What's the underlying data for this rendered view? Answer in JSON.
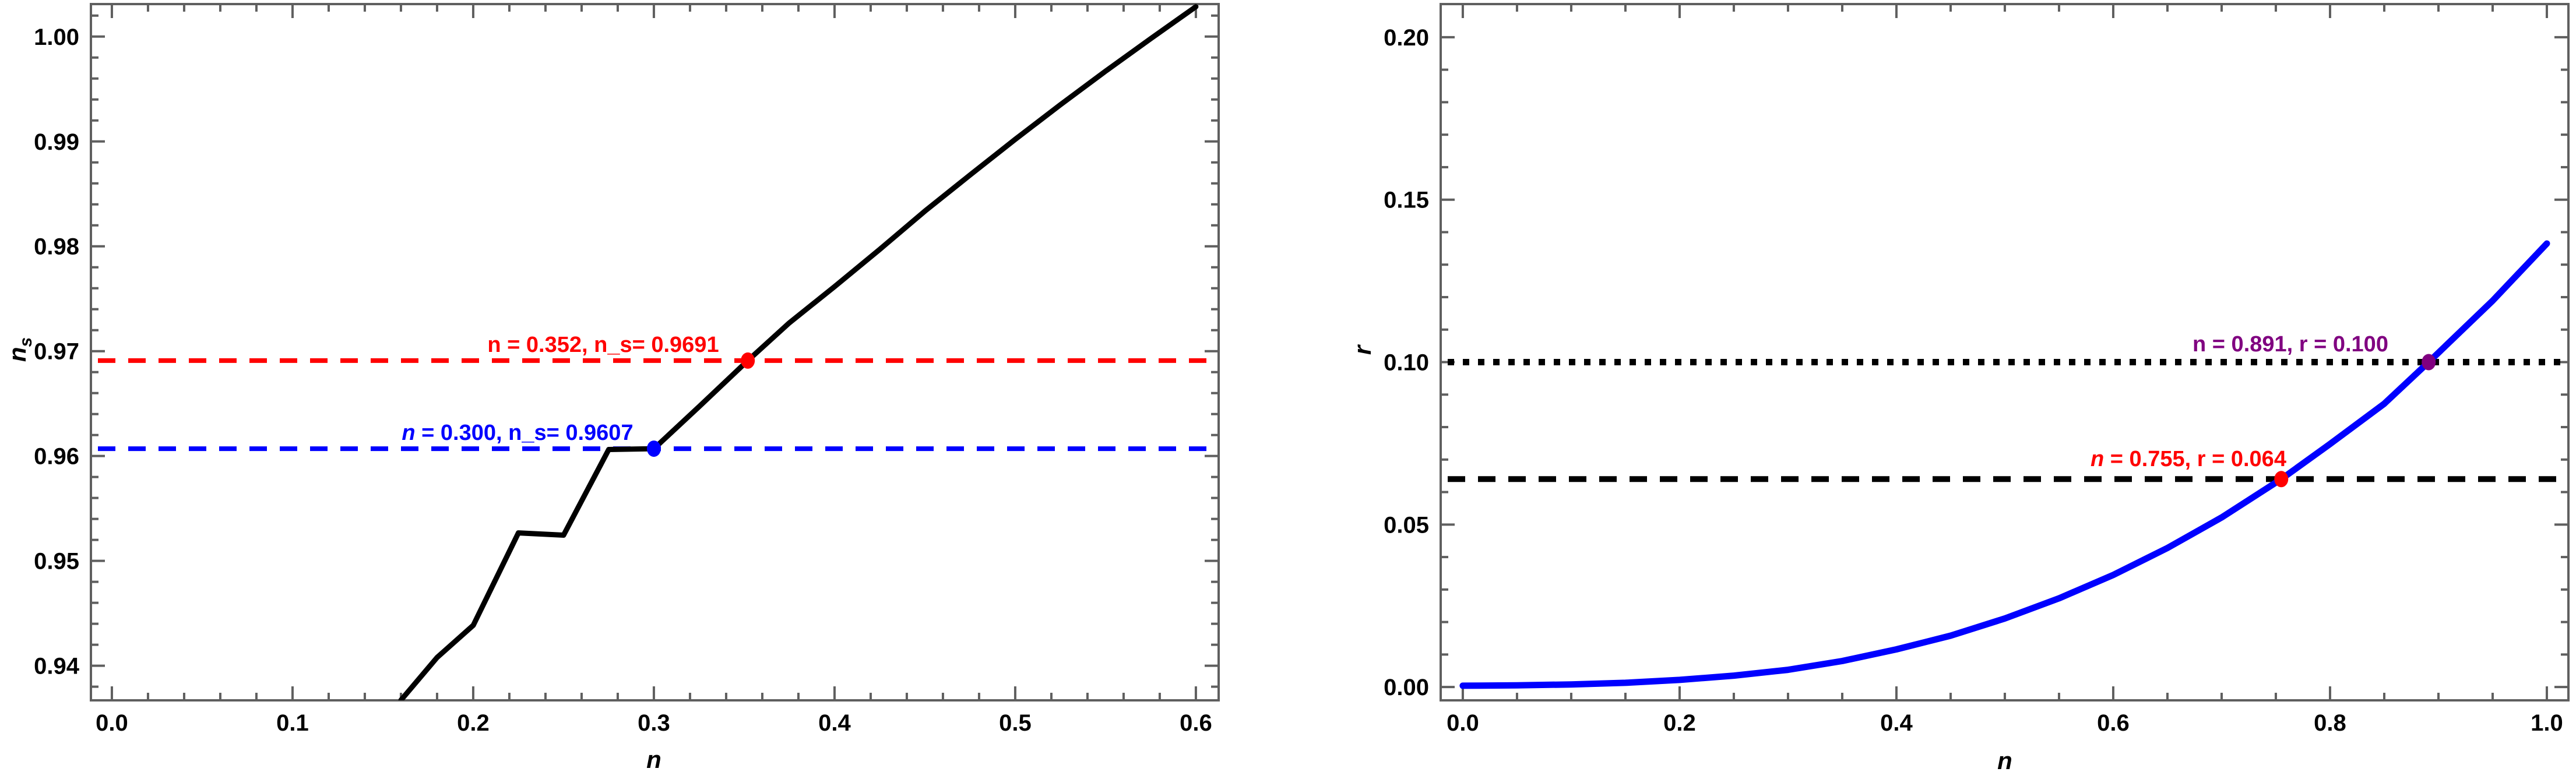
{
  "figure": {
    "background": "#ffffff",
    "frame_color": "#5f5f5f",
    "description": "Two framed line plots: spectral index n_s vs n, and tensor-to-scalar ratio r vs n"
  },
  "chart_data": [
    {
      "type": "line",
      "panel": "left",
      "xlabel": "n",
      "ylabel": "n_s",
      "ylabel_base": "n",
      "ylabel_sub": "s",
      "xlim": [
        -0.0116,
        0.6126
      ],
      "ylim": [
        0.9367,
        1.0031
      ],
      "xticks": {
        "values": [
          0.0,
          0.1,
          0.2,
          0.3,
          0.4,
          0.5,
          0.6
        ],
        "labels": [
          "0.0",
          "0.1",
          "0.2",
          "0.3",
          "0.4",
          "0.5",
          "0.6"
        ],
        "minor_step": 0.02
      },
      "yticks": {
        "values": [
          0.94,
          0.95,
          0.96,
          0.97,
          0.98,
          0.99,
          1.0
        ],
        "labels": [
          "0.94",
          "0.95",
          "0.96",
          "0.97",
          "0.98",
          "0.99",
          "1.00"
        ],
        "minor_step": 0.002
      },
      "series": [
        {
          "name": "ns-curve",
          "color": "#000000",
          "width": 9,
          "style": "solid",
          "points": [
            [
              0.16,
              0.93672
            ],
            [
              0.18,
              0.94079
            ],
            [
              0.2,
              0.94385
            ],
            [
              0.225,
              0.95267
            ],
            [
              0.25,
              0.95245
            ],
            [
              0.275,
              0.96062
            ],
            [
              0.3,
              0.9607
            ],
            [
              0.325,
              0.9647
            ],
            [
              0.352,
              0.9691
            ],
            [
              0.375,
              0.9727
            ],
            [
              0.4,
              0.97615
            ],
            [
              0.425,
              0.9797
            ],
            [
              0.45,
              0.98335
            ],
            [
              0.475,
              0.9868
            ],
            [
              0.5,
              0.9902
            ],
            [
              0.525,
              0.9935
            ],
            [
              0.55,
              0.9967
            ],
            [
              0.575,
              0.9998
            ],
            [
              0.6,
              1.00285
            ]
          ]
        }
      ],
      "hlines": [
        {
          "y": 0.9691,
          "color": "#ff0000",
          "style": "dashed",
          "width": 8
        },
        {
          "y": 0.9607,
          "color": "#0000ff",
          "style": "dashed",
          "width": 8
        }
      ],
      "points": [
        {
          "x": 0.352,
          "y": 0.9691,
          "color": "#ff0000"
        },
        {
          "x": 0.3,
          "y": 0.9607,
          "color": "#0000ff"
        }
      ],
      "annotations": [
        {
          "text_head": "n",
          "text_rest": " = 0.352, n_s= 0.9691",
          "italic_head": false,
          "color": "#ff0000"
        },
        {
          "text_head": "n",
          "text_rest": " = 0.300, n_s= 0.9607",
          "italic_head": true,
          "color": "#0000ff"
        }
      ]
    },
    {
      "type": "line",
      "panel": "right",
      "xlabel": "n",
      "ylabel": "r",
      "ylabel_base": "r",
      "ylabel_sub": "",
      "xlim": [
        -0.0204,
        1.0199
      ],
      "ylim": [
        -0.0041,
        0.2102
      ],
      "xticks": {
        "values": [
          0.0,
          0.2,
          0.4,
          0.6,
          0.8,
          1.0
        ],
        "labels": [
          "0.0",
          "0.2",
          "0.4",
          "0.6",
          "0.8",
          "1.0"
        ],
        "minor_step": 0.05
      },
      "yticks": {
        "values": [
          0.0,
          0.05,
          0.1,
          0.15,
          0.2
        ],
        "labels": [
          "0.00",
          "0.05",
          "0.10",
          "0.15",
          "0.20"
        ],
        "minor_step": 0.01
      },
      "series": [
        {
          "name": "r-curve",
          "color": "#0000ff",
          "width": 11,
          "style": "solid",
          "points": [
            [
              0.0,
              0.0004
            ],
            [
              0.05,
              0.0005
            ],
            [
              0.1,
              0.0008
            ],
            [
              0.15,
              0.0013
            ],
            [
              0.2,
              0.0022
            ],
            [
              0.25,
              0.0035
            ],
            [
              0.3,
              0.0053
            ],
            [
              0.35,
              0.008
            ],
            [
              0.4,
              0.0116
            ],
            [
              0.45,
              0.0158
            ],
            [
              0.5,
              0.0211
            ],
            [
              0.55,
              0.0273
            ],
            [
              0.6,
              0.0345
            ],
            [
              0.65,
              0.0428
            ],
            [
              0.7,
              0.0522
            ],
            [
              0.755,
              0.064
            ],
            [
              0.8,
              0.0748
            ],
            [
              0.85,
              0.0872
            ],
            [
              0.891,
              0.1
            ],
            [
              0.95,
              0.1189
            ],
            [
              1.0,
              0.1365
            ]
          ]
        }
      ],
      "hlines": [
        {
          "y": 0.1,
          "color": "#000000",
          "style": "dotted",
          "width": 11
        },
        {
          "y": 0.064,
          "color": "#000000",
          "style": "dashed",
          "width": 10
        }
      ],
      "points": [
        {
          "x": 0.891,
          "y": 0.1,
          "color": "#800080"
        },
        {
          "x": 0.755,
          "y": 0.064,
          "color": "#ff0000"
        }
      ],
      "annotations": [
        {
          "text_head": "n",
          "text_rest": " = 0.891, r = 0.100",
          "italic_head": false,
          "color": "#800080"
        },
        {
          "text_head": "n",
          "text_rest": " = 0.755, r = 0.064",
          "italic_head": true,
          "color": "#ff0000"
        }
      ]
    }
  ]
}
